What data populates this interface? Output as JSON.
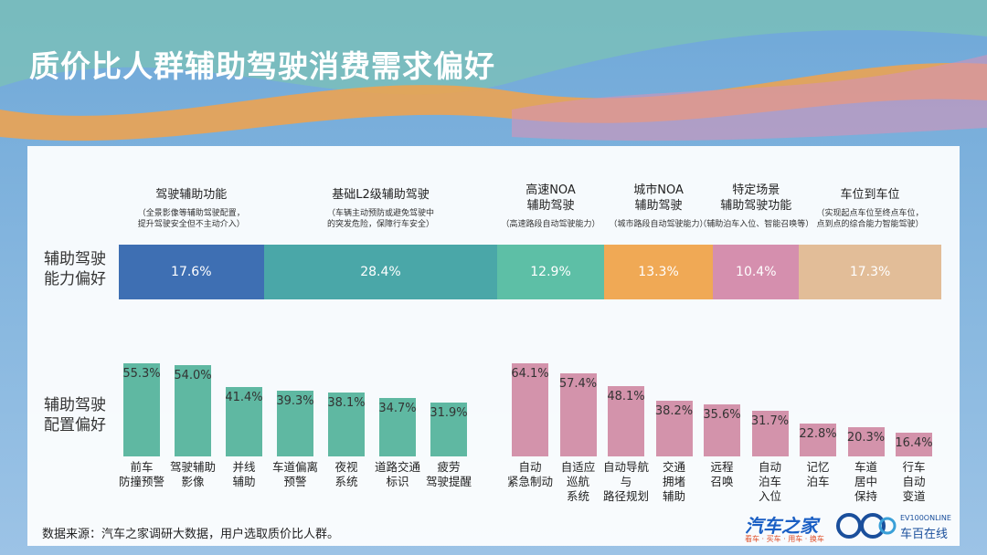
{
  "title": "质价比人群辅助驾驶消费需求偏好",
  "chart_data": [
    {
      "type": "stacked_bar",
      "row_label": "辅助驾驶\n能力偏好",
      "series": [
        {
          "name": "驾驶辅助功能",
          "description": "（全景影像等辅助驾驶配置，\n提升驾驶安全但不主动介入）",
          "color": "#3e6fb3",
          "values": [
            17.6
          ],
          "value_labels": [
            "17.6%"
          ]
        },
        {
          "name": "基础L2级辅助驾驶",
          "description": "（车辆主动预防或避免驾驶中\n的突发危险，保障行车安全）",
          "color": "#4aa7a8",
          "values": [
            28.4
          ],
          "value_labels": [
            "28.4%"
          ]
        },
        {
          "name": "高速NOA\n辅助驾驶",
          "description": "（高速路段自动驾驶能力）",
          "color": "#5dbfa6",
          "values": [
            12.9
          ],
          "value_labels": [
            "12.9%"
          ]
        },
        {
          "name": "城市NOA\n辅助驾驶",
          "description": "（城市路段自动驾驶能力）",
          "color": "#f0a955",
          "values": [
            13.3
          ],
          "value_labels": [
            "13.3%"
          ]
        },
        {
          "name": "特定场景\n辅助驾驶功能",
          "description": "（辅助泊车入位、智能召唤等）",
          "color": "#d58fae",
          "values": [
            10.4
          ],
          "value_labels": [
            "10.4%"
          ]
        },
        {
          "name": "车位到车位",
          "description": "（实现起点车位至终点车位，\n点到点的综合能力智能驾驶）",
          "color": "#e2bd98",
          "values": [
            17.3
          ],
          "value_labels": [
            "17.3%"
          ]
        }
      ]
    },
    {
      "type": "bar",
      "row_label": "辅助驾驶\n配置偏好",
      "color": "#5fb8a2",
      "categories": [
        "前车\n防撞预警",
        "驾驶辅助\n影像",
        "并线\n辅助",
        "车道偏离\n预警",
        "夜视\n系统",
        "道路交通\n标识",
        "疲劳\n驾驶提醒"
      ],
      "values": [
        55.3,
        54.0,
        41.4,
        39.3,
        38.1,
        34.7,
        31.9
      ],
      "value_labels": [
        "55.3%",
        "54.0%",
        "41.4%",
        "39.3%",
        "38.1%",
        "34.7%",
        "31.9%"
      ]
    },
    {
      "type": "bar",
      "color": "#d393ab",
      "categories": [
        "自动\n紧急制动",
        "自适应\n巡航\n系统",
        "自动导航\n与\n路径规划",
        "交通\n拥堵\n辅助",
        "远程\n召唤",
        "自动\n泊车\n入位",
        "记忆\n泊车",
        "车道\n居中\n保持",
        "行车\n自动\n变道"
      ],
      "values": [
        64.1,
        57.4,
        48.1,
        38.2,
        35.6,
        31.7,
        22.8,
        20.3,
        16.4
      ],
      "value_labels": [
        "64.1%",
        "57.4%",
        "48.1%",
        "38.2%",
        "35.6%",
        "31.7%",
        "22.8%",
        "20.3%",
        "16.4%"
      ]
    }
  ],
  "source": "数据来源：汽车之家调研大数据，用户选取质价比人群。",
  "logos": {
    "autohome": "汽车之家",
    "autohome_sub": "看车 · 买车 · 用车 · 换车",
    "ev100": "EV100ONLINE",
    "ev100_sub": "车百在线"
  }
}
